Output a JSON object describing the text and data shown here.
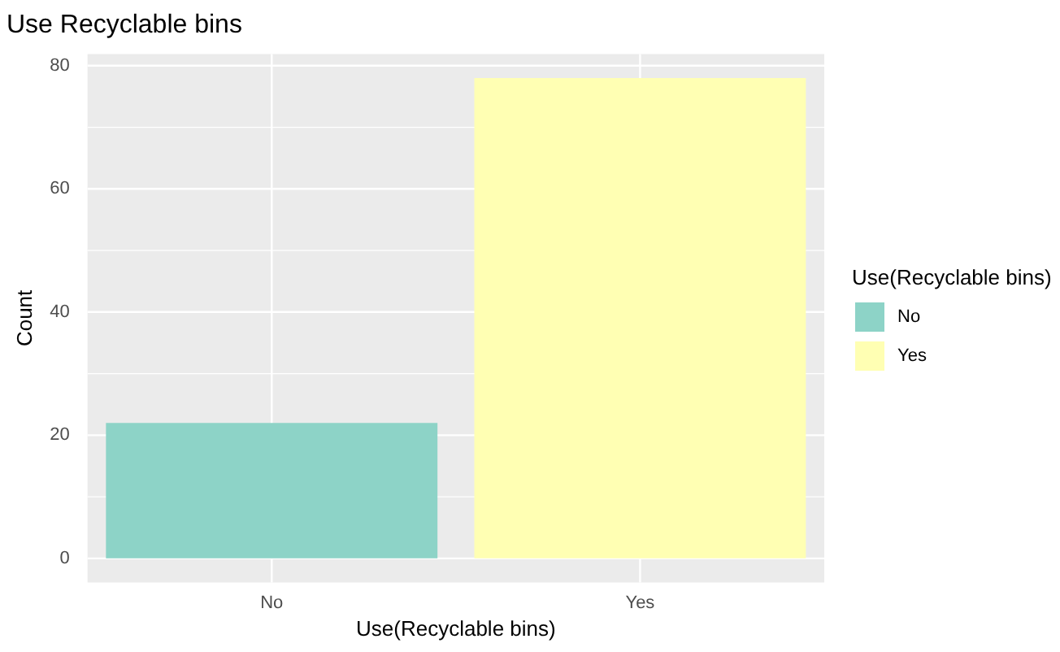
{
  "chart_data": {
    "type": "bar",
    "title": "Use Recyclable bins",
    "xlabel": "Use(Recyclable bins)",
    "ylabel": "Count",
    "legend_title": "Use(Recyclable bins)",
    "categories": [
      "No",
      "Yes"
    ],
    "series": [
      {
        "name": "No",
        "color": "#8dd3c7",
        "values": [
          22,
          null
        ]
      },
      {
        "name": "Yes",
        "color": "#ffffb3",
        "values": [
          null,
          78
        ]
      }
    ],
    "ylim": [
      -3.9,
      81.9
    ],
    "yticks": [
      0,
      20,
      40,
      60,
      80
    ],
    "grid": true,
    "legend": "right"
  }
}
